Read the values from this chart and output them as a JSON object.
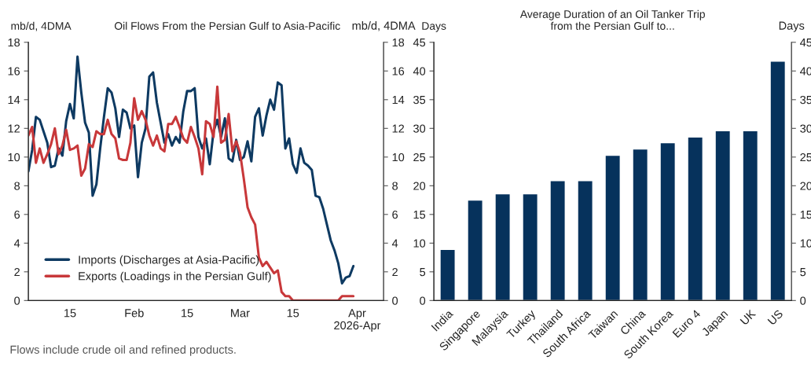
{
  "chart_data": [
    {
      "type": "line",
      "title": "Oil Flows From the Persian Gulf to Asia-Pacific",
      "ylabel": "mb/d, 4DMA",
      "y2label": "mb/d, 4DMA",
      "xlim": [
        "2026-01-04",
        "2026-04-08"
      ],
      "x": [
        "2026-01-04",
        "2026-01-05",
        "2026-01-06",
        "2026-01-07",
        "2026-01-08",
        "2026-01-09",
        "2026-01-10",
        "2026-01-11",
        "2026-01-12",
        "2026-01-13",
        "2026-01-14",
        "2026-01-15",
        "2026-01-16",
        "2026-01-17",
        "2026-01-18",
        "2026-01-19",
        "2026-01-20",
        "2026-01-21",
        "2026-01-22",
        "2026-01-23",
        "2026-01-24",
        "2026-01-25",
        "2026-01-26",
        "2026-01-27",
        "2026-01-28",
        "2026-01-29",
        "2026-01-30",
        "2026-01-31",
        "2026-02-01",
        "2026-02-02",
        "2026-02-03",
        "2026-02-04",
        "2026-02-05",
        "2026-02-06",
        "2026-02-07",
        "2026-02-08",
        "2026-02-09",
        "2026-02-10",
        "2026-02-11",
        "2026-02-12",
        "2026-02-13",
        "2026-02-14",
        "2026-02-15",
        "2026-02-16",
        "2026-02-17",
        "2026-02-18",
        "2026-02-19",
        "2026-02-20",
        "2026-02-21",
        "2026-02-22",
        "2026-02-23",
        "2026-02-24",
        "2026-02-25",
        "2026-02-26",
        "2026-02-27",
        "2026-02-28",
        "2026-03-01",
        "2026-03-02",
        "2026-03-03",
        "2026-03-04",
        "2026-03-05",
        "2026-03-06",
        "2026-03-07",
        "2026-03-08",
        "2026-03-09",
        "2026-03-10",
        "2026-03-11",
        "2026-03-12",
        "2026-03-13",
        "2026-03-14",
        "2026-03-15",
        "2026-03-16",
        "2026-03-17",
        "2026-03-18",
        "2026-03-19",
        "2026-03-20",
        "2026-03-21",
        "2026-03-22",
        "2026-03-23",
        "2026-03-24",
        "2026-03-25",
        "2026-03-26",
        "2026-03-27",
        "2026-03-28",
        "2026-03-29",
        "2026-03-30",
        "2026-03-31"
      ],
      "xticks": [
        {
          "value": "2026-01-15",
          "label": "15"
        },
        {
          "value": "2026-02-01",
          "label": "Feb"
        },
        {
          "value": "2026-02-15",
          "label": "15"
        },
        {
          "value": "2026-03-01",
          "label": "Mar"
        },
        {
          "value": "2026-03-15",
          "label": "15"
        },
        {
          "value": "2026-04-01",
          "label": "Apr\n2026-Apr"
        }
      ],
      "ylim": [
        0,
        18
      ],
      "yticks": [
        0,
        2,
        4,
        6,
        8,
        10,
        12,
        14,
        16,
        18
      ],
      "y2lim": [
        0,
        18
      ],
      "y2ticks": [
        0,
        2,
        4,
        6,
        8,
        10,
        12,
        14,
        16,
        18
      ],
      "legend": "bottom left",
      "series": [
        {
          "name": "Imports (Discharges at Asia-Pacific)",
          "color": "#0e3a62",
          "values": [
            9.0,
            10.5,
            12.8,
            12.6,
            11.8,
            11.0,
            9.3,
            9.4,
            10.6,
            10.1,
            12.5,
            13.7,
            12.7,
            17.0,
            14.5,
            12.4,
            11.7,
            7.3,
            8.1,
            10.6,
            12.8,
            14.8,
            14.5,
            13.4,
            11.4,
            13.3,
            13.1,
            12.0,
            12.2,
            8.6,
            11.0,
            12.0,
            15.6,
            15.9,
            13.8,
            12.4,
            11.0,
            11.6,
            10.8,
            11.4,
            11.0,
            13.2,
            14.6,
            14.6,
            14.8,
            11.4,
            10.6,
            11.3,
            9.5,
            11.8,
            12.6,
            11.4,
            12.7,
            9.9,
            9.7,
            11.2,
            9.8,
            10.0,
            11.1,
            9.7,
            12.8,
            13.4,
            11.5,
            12.9,
            14.0,
            13.3,
            15.2,
            15.0,
            10.6,
            11.3,
            9.5,
            8.9,
            10.6,
            9.6,
            9.4,
            9.1,
            7.3,
            7.2,
            6.4,
            5.3,
            4.2,
            3.5,
            2.6,
            1.2,
            1.6,
            1.7,
            2.4
          ]
        },
        {
          "name": "Exports (Loadings in the Persian Gulf)",
          "color": "#c8383a",
          "values": [
            11.5,
            12.1,
            9.6,
            10.6,
            9.6,
            10.2,
            10.9,
            12.0,
            10.2,
            10.8,
            11.9,
            10.5,
            10.6,
            10.8,
            8.7,
            9.2,
            10.9,
            10.7,
            11.8,
            11.6,
            11.6,
            12.6,
            11.6,
            11.3,
            9.9,
            9.8,
            9.8,
            11.0,
            14.1,
            12.6,
            13.2,
            12.6,
            11.5,
            10.8,
            11.5,
            10.6,
            10.4,
            12.3,
            12.3,
            12.8,
            12.1,
            11.3,
            11.0,
            12.1,
            11.4,
            10.6,
            8.8,
            12.5,
            12.3,
            11.4,
            14.9,
            11.0,
            11.2,
            13.0,
            10.4,
            11.1,
            10.3,
            8.5,
            6.5,
            5.8,
            5.3,
            3.0,
            2.4,
            2.7,
            2.3,
            1.9,
            2.1,
            0.6,
            0.3,
            0.3,
            0.0,
            0.0,
            0.0,
            0.0,
            0.0,
            0.0,
            0.0,
            0.0,
            0.0,
            0.0,
            0.0,
            0.0,
            0.0,
            0.3,
            0.3,
            0.3,
            0.3
          ]
        }
      ],
      "annotations": [
        "Flows include crude oil and refined products."
      ]
    },
    {
      "type": "bar",
      "title": "Average Duration of an Oil Tanker Trip\nfrom the Persian Gulf to...",
      "ylabel": "Days",
      "y2label": "Days",
      "categories": [
        "India",
        "Singapore",
        "Malaysia",
        "Turkey",
        "Thailand",
        "South Africa",
        "Taiwan",
        "China",
        "South Korea",
        "Euro 4",
        "Japan",
        "UK",
        "US"
      ],
      "values": [
        8.9,
        17.5,
        18.6,
        18.6,
        20.9,
        20.9,
        25.3,
        26.4,
        27.5,
        28.5,
        29.6,
        29.6,
        41.7
      ],
      "color": "#06325c",
      "ylim": [
        0,
        45
      ],
      "yticks": [
        0,
        5,
        10,
        15,
        20,
        25,
        30,
        35,
        40,
        45
      ],
      "y2lim": [
        0,
        45
      ],
      "y2ticks": [
        0,
        5,
        10,
        15,
        20,
        25,
        30,
        35,
        40,
        45
      ]
    }
  ]
}
